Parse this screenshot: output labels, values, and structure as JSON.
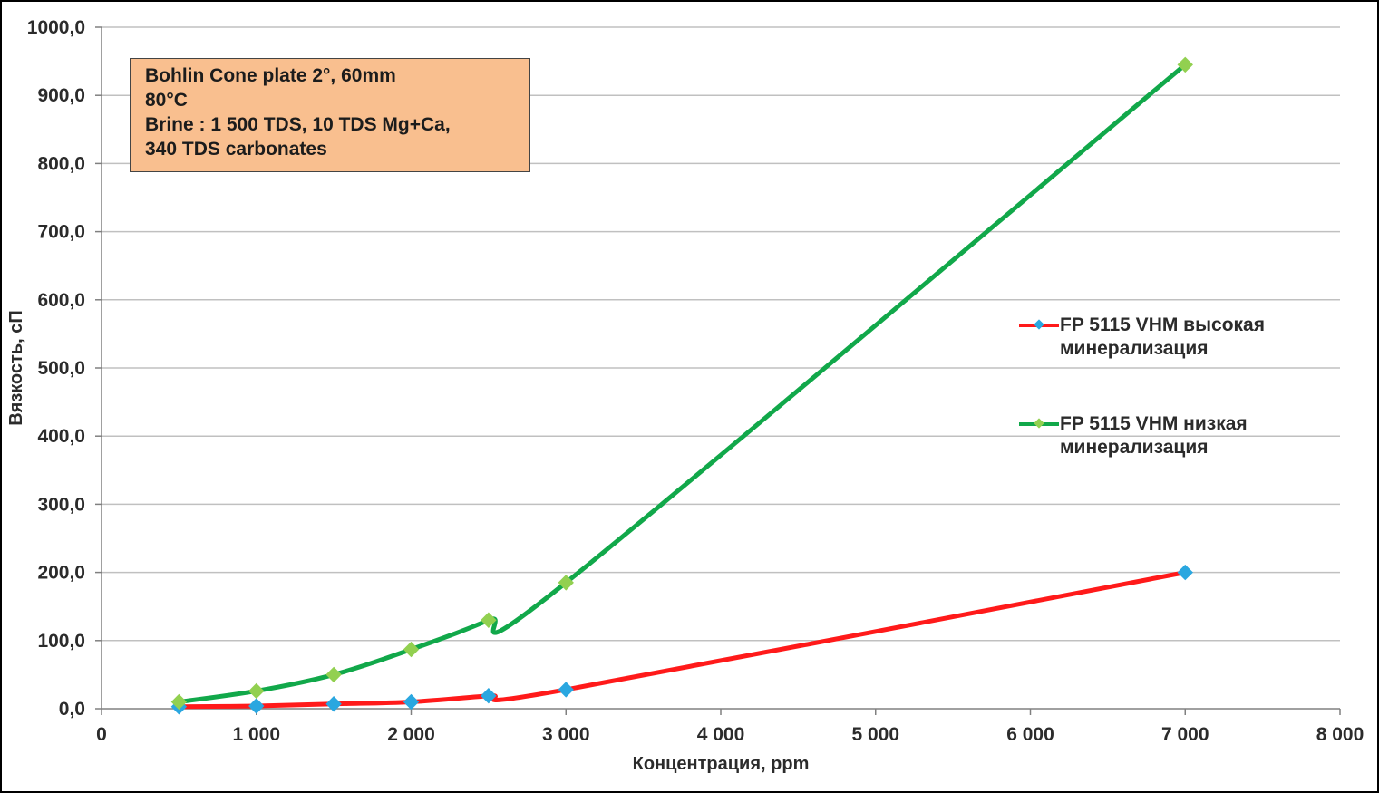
{
  "chart_data": {
    "type": "line",
    "xlabel": "Концентрация, ppm",
    "ylabel": "Вязкость, сП",
    "xlim": [
      0,
      8000
    ],
    "ylim": [
      0,
      1000
    ],
    "x_ticks": [
      0,
      1000,
      2000,
      3000,
      4000,
      5000,
      6000,
      7000,
      8000
    ],
    "x_tick_labels": [
      "0",
      "1 000",
      "2 000",
      "3 000",
      "4 000",
      "5 000",
      "6 000",
      "7 000",
      "8 000"
    ],
    "y_ticks": [
      0,
      100,
      200,
      300,
      400,
      500,
      600,
      700,
      800,
      900,
      1000
    ],
    "y_tick_labels": [
      "0,0",
      "100,0",
      "200,0",
      "300,0",
      "400,0",
      "500,0",
      "600,0",
      "700,0",
      "800,0",
      "900,0",
      "1000,0"
    ],
    "grid": "horizontal",
    "legend_position": "right",
    "annotation": [
      "Bohlin Cone plate 2°, 60mm",
      "80°C",
      "Brine : 1 500  TDS,  10 TDS Mg+Ca,",
      "340 TDS carbonates"
    ],
    "series": [
      {
        "name": "FP 5115 VHM высокая минерализация",
        "legend_lines": [
          "FP 5115 VHM высокая",
          "минерализация"
        ],
        "line_color": "#ff1a1a",
        "marker_color": "#2aa7e0",
        "x": [
          500,
          1000,
          1500,
          2000,
          2500,
          3000,
          7000
        ],
        "y": [
          3,
          4,
          7,
          10,
          19,
          28,
          200
        ]
      },
      {
        "name": "FP 5115 VHM низкая минерализация",
        "legend_lines": [
          "FP 5115 VHM низкая",
          "минерализация"
        ],
        "line_color": "#11a84a",
        "marker_color": "#92d050",
        "x": [
          500,
          1000,
          1500,
          2000,
          2500,
          3000,
          7000
        ],
        "y": [
          10,
          26,
          50,
          87,
          130,
          185,
          945
        ]
      }
    ]
  }
}
